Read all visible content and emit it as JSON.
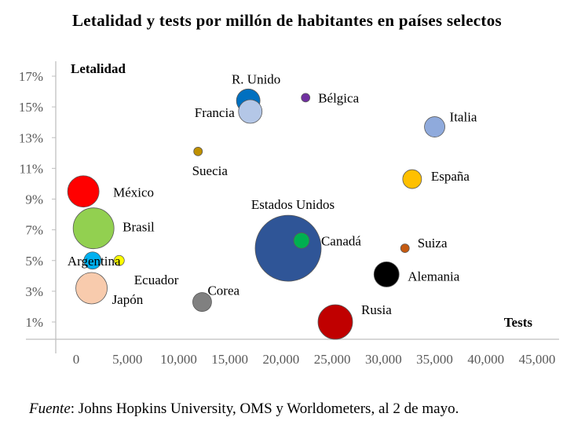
{
  "chart_data": {
    "type": "bubble",
    "title": "Letalidad y tests por millón de habitantes en países selectos",
    "xlabel": "Tests",
    "ylabel": "Letalidad",
    "xlim": [
      -2000,
      45000
    ],
    "ylim": [
      0,
      18
    ],
    "x_ticks": [
      0,
      5000,
      10000,
      15000,
      20000,
      25000,
      30000,
      35000,
      40000,
      45000
    ],
    "x_tick_labels": [
      "0",
      "5,000",
      "10,000",
      "15,000",
      "20,000",
      "25,000",
      "30,000",
      "35,000",
      "40,000",
      "45,000"
    ],
    "y_ticks": [
      1,
      3,
      5,
      7,
      9,
      11,
      13,
      15,
      17
    ],
    "y_tick_labels": [
      "1%",
      "3%",
      "5%",
      "7%",
      "9%",
      "11%",
      "13%",
      "15%",
      "17%"
    ],
    "grid": false,
    "points": [
      {
        "name": "Estados Unidos",
        "x": 20700,
        "y": 5.8,
        "size": 42,
        "color": "#2F5597"
      },
      {
        "name": "Brasil",
        "x": 1700,
        "y": 7.1,
        "size": 26,
        "color": "#92D050"
      },
      {
        "name": "México",
        "x": 700,
        "y": 9.5,
        "size": 20,
        "color": "#FF0000"
      },
      {
        "name": "Japón",
        "x": 1500,
        "y": 3.2,
        "size": 20,
        "color": "#F8CBAD"
      },
      {
        "name": "Rusia",
        "x": 25300,
        "y": 1.0,
        "size": 22,
        "color": "#C00000"
      },
      {
        "name": "R. Unido",
        "x": 16800,
        "y": 15.4,
        "size": 15,
        "color": "#0070C0"
      },
      {
        "name": "Francia",
        "x": 17000,
        "y": 14.7,
        "size": 15,
        "color": "#B4C7E7"
      },
      {
        "name": "Italia",
        "x": 35000,
        "y": 13.7,
        "size": 13,
        "color": "#8FAADC"
      },
      {
        "name": "Alemania",
        "x": 30300,
        "y": 4.1,
        "size": 16,
        "color": "#000000"
      },
      {
        "name": "España",
        "x": 32800,
        "y": 10.3,
        "size": 12,
        "color": "#FFC000"
      },
      {
        "name": "Canadá",
        "x": 22000,
        "y": 6.3,
        "size": 10,
        "color": "#00B050"
      },
      {
        "name": "Corea",
        "x": 12300,
        "y": 2.3,
        "size": 12,
        "color": "#808080"
      },
      {
        "name": "Argentina",
        "x": 1600,
        "y": 5.0,
        "size": 11,
        "color": "#00B0F0"
      },
      {
        "name": "Ecuador",
        "x": 4200,
        "y": 5.0,
        "size": 6.5,
        "color": "#FFFF00"
      },
      {
        "name": "Suecia",
        "x": 11900,
        "y": 12.1,
        "size": 5.5,
        "color": "#BF9000"
      },
      {
        "name": "Bélgica",
        "x": 22400,
        "y": 15.6,
        "size": 5.5,
        "color": "#7030A0"
      },
      {
        "name": "Suiza",
        "x": 32100,
        "y": 5.8,
        "size": 5.5,
        "color": "#C55A11"
      }
    ]
  },
  "source": {
    "prefix": "Fuente",
    "text": ": Johns Hopkins University, OMS y Worldometers, al 2 de mayo."
  }
}
